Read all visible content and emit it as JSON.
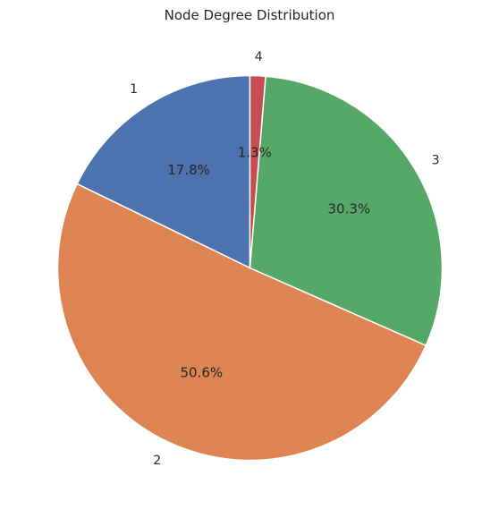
{
  "chart_data": {
    "type": "pie",
    "title": "Node Degree Distribution",
    "categories": [
      "1",
      "2",
      "3",
      "4"
    ],
    "percent_labels": [
      "17.8%",
      "50.6%",
      "30.3%",
      "1.3%"
    ],
    "values": [
      17.8,
      50.6,
      30.3,
      1.3
    ],
    "colors": [
      "#4c72b0",
      "#dd8452",
      "#55a868",
      "#c44e52"
    ],
    "start_angle_deg": 90,
    "direction": "counterclockwise",
    "legend": "none",
    "grid": false
  }
}
